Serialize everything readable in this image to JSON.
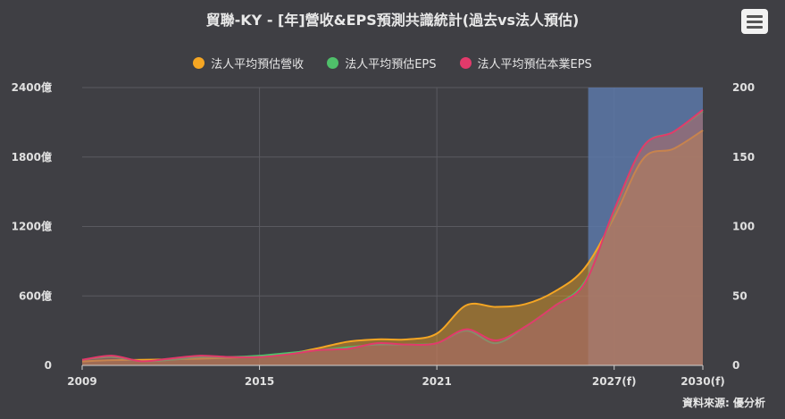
{
  "title": "貿聯-KY - [年]營收&EPS預測共識統計(過去vs法人預估)",
  "credit": "資料來源: 優分析",
  "menu_icon": "hamburger-menu-icon",
  "chart_data": {
    "type": "area",
    "title": "貿聯-KY - [年]營收&EPS預測共識統計(過去vs法人預估)",
    "x_tick_labels": [
      "2009",
      "2015",
      "2021",
      "2027(f)",
      "2030(f)"
    ],
    "y_left": {
      "range": [
        0,
        2400
      ],
      "ticks": [
        "0",
        "600億",
        "1200億",
        "1800億",
        "2400億"
      ]
    },
    "y_right": {
      "range": [
        0,
        200
      ],
      "ticks": [
        "0",
        "50",
        "100",
        "150",
        "200"
      ]
    },
    "forecast_band": {
      "from": 2026,
      "to": 2030,
      "color": "#5c78a8"
    },
    "grid": true,
    "legend_position": "top-center",
    "series": [
      {
        "name": "法人平均預估營收",
        "axis": "left",
        "color": "#f5a623",
        "x": [
          2009,
          2010,
          2011,
          2012,
          2013,
          2014,
          2015,
          2016,
          2017,
          2018,
          2019,
          2020,
          2021,
          2022,
          2023,
          2024,
          2025,
          2026,
          2027,
          2028,
          2029,
          2030
        ],
        "values": [
          35,
          45,
          48,
          52,
          58,
          66,
          78,
          100,
          150,
          205,
          225,
          225,
          275,
          520,
          505,
          530,
          640,
          840,
          1280,
          1790,
          1870,
          2030
        ]
      },
      {
        "name": "法人平均預估EPS",
        "axis": "right",
        "color": "#4fc06a",
        "x": [
          2009,
          2010,
          2011,
          2012,
          2013,
          2014,
          2015,
          2016,
          2017,
          2018,
          2019,
          2020,
          2021,
          2022,
          2023,
          2024,
          2025,
          2026,
          2027,
          2028,
          2029,
          2030
        ],
        "values": [
          4,
          6,
          3,
          4,
          6,
          6,
          7,
          9,
          11,
          13,
          15,
          15,
          16,
          25,
          16,
          28,
          43,
          60,
          110,
          158,
          168,
          183
        ]
      },
      {
        "name": "法人平均預估本業EPS",
        "axis": "right",
        "color": "#e23a6b",
        "x": [
          2009,
          2010,
          2011,
          2012,
          2013,
          2014,
          2015,
          2016,
          2017,
          2018,
          2019,
          2020,
          2021,
          2022,
          2023,
          2024,
          2025,
          2026,
          2027,
          2028,
          2029,
          2030
        ],
        "values": [
          4,
          7,
          3,
          5,
          7,
          6,
          6,
          8,
          11,
          12,
          16,
          15,
          16,
          26,
          18,
          28,
          43,
          59,
          112,
          158,
          168,
          184
        ]
      }
    ]
  }
}
